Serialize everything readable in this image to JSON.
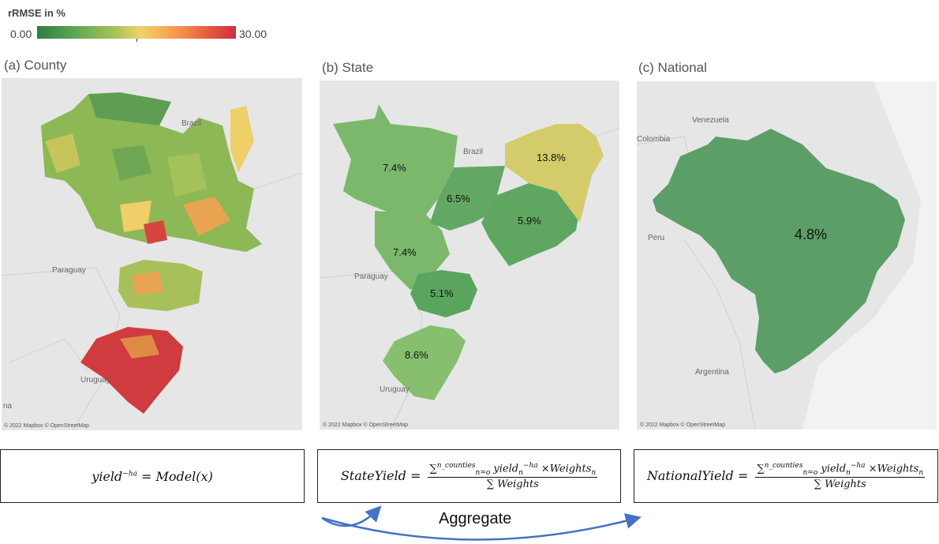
{
  "legend": {
    "title": "rRMSE in %",
    "min_label": "0.00",
    "max_label": "30.00",
    "colors": [
      "#2e7d46",
      "#5aa552",
      "#a8c55a",
      "#efd36a",
      "#f6a04f",
      "#e8603f",
      "#cf2e3d"
    ]
  },
  "panels": [
    {
      "title": "(a) County",
      "attribution": "© 2022 Mapbox © OpenStreetMap",
      "labels": [
        "Brazil",
        "Paraguay",
        "Uruguay",
        "na"
      ]
    },
    {
      "title": "(b) State",
      "attribution": "© 2022 Mapbox © OpenStreetMap",
      "labels": [
        "Brazil",
        "Paraguay",
        "Uruguay"
      ],
      "states": [
        {
          "value": "7.4%",
          "rrmse": 7.4
        },
        {
          "value": "7.4%",
          "rrmse": 7.4
        },
        {
          "value": "6.5%",
          "rrmse": 6.5
        },
        {
          "value": "5.9%",
          "rrmse": 5.9
        },
        {
          "value": "13.8%",
          "rrmse": 13.8
        },
        {
          "value": "5.1%",
          "rrmse": 5.1
        },
        {
          "value": "8.6%",
          "rrmse": 8.6
        }
      ]
    },
    {
      "title": "(c) National",
      "attribution": "© 2022 Mapbox © OpenStreetMap",
      "labels": [
        "Venezuela",
        "Colombia",
        "Peru",
        "Argentina"
      ],
      "national": {
        "value": "4.8%",
        "rrmse": 4.8
      }
    }
  ],
  "formulas": {
    "model_lhs": "yield",
    "model_sup": "−ha",
    "model_rhs": " = Model(x)",
    "state_lhs": "StateYield =",
    "national_lhs": "NationalYield =",
    "numerator_sum": "∑",
    "numerator_sup": "n_counties",
    "numerator_sub": "n=o",
    "numerator_mid": " yield",
    "numerator_sub2": "n",
    "numerator_sup2": "−ha",
    "numerator_tail": " ×Weights",
    "numerator_sub3": "n",
    "denominator": "∑ Weights"
  },
  "aggregate_label": "Aggregate"
}
